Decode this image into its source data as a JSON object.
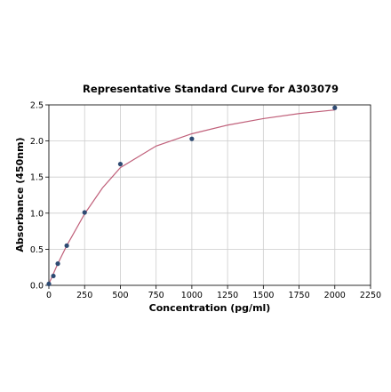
{
  "chart_data": {
    "type": "scatter",
    "title": "Representative Standard Curve for A303079",
    "xlabel": "Concentration (pg/ml)",
    "ylabel": "Absorbance (450nm)",
    "xlim": [
      0,
      2250
    ],
    "ylim": [
      0,
      2.5
    ],
    "x_ticks": [
      "0",
      "250",
      "500",
      "750",
      "1000",
      "1250",
      "1500",
      "1750",
      "2000",
      "2250"
    ],
    "y_ticks": [
      "0.0",
      "0.5",
      "1.0",
      "1.5",
      "2.0",
      "2.5"
    ],
    "grid": true,
    "series": [
      {
        "type": "scatter",
        "x": [
          0,
          31.25,
          62.5,
          125,
          250,
          500,
          1000,
          2000
        ],
        "y": [
          0.02,
          0.13,
          0.3,
          0.55,
          1.01,
          1.68,
          2.03,
          2.46
        ],
        "color": "#2e4a72"
      },
      {
        "type": "line",
        "x": [
          0,
          31.25,
          62.5,
          125,
          250,
          375,
          500,
          750,
          1000,
          1250,
          1500,
          1750,
          2000
        ],
        "y": [
          0.02,
          0.16,
          0.3,
          0.55,
          0.99,
          1.35,
          1.63,
          1.93,
          2.1,
          2.22,
          2.31,
          2.38,
          2.43
        ],
        "color": "#c0607a"
      }
    ]
  }
}
